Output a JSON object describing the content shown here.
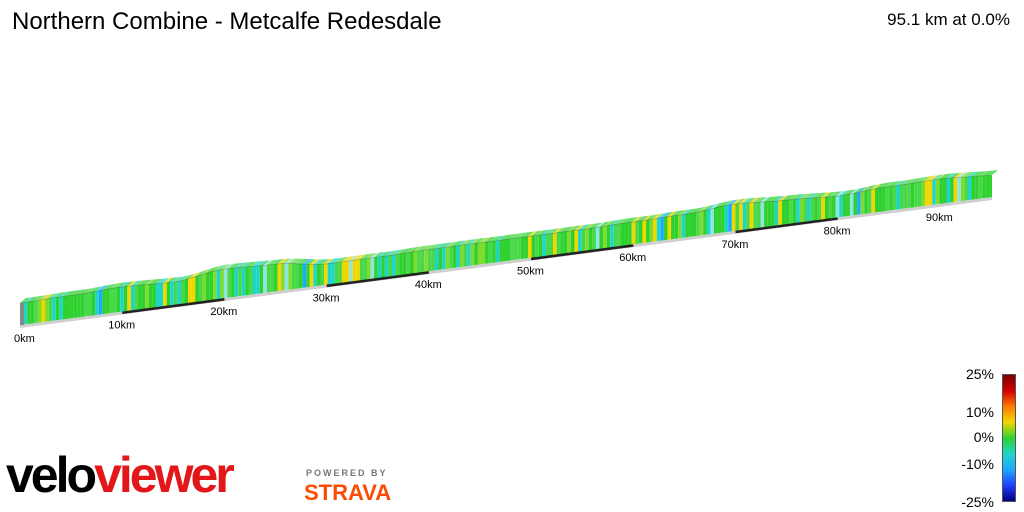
{
  "header": {
    "title": "Northern Combine - Metcalfe Redesdale",
    "summary": "95.1 km at 0.0%"
  },
  "chart_data": {
    "type": "area",
    "title": "Northern Combine - Metcalfe Redesdale",
    "distance_km": 95.1,
    "average_gradient_pct": 0.0,
    "x_ticks": [
      "0km",
      "10km",
      "20km",
      "30km",
      "40km",
      "50km",
      "60km",
      "70km",
      "80km",
      "90km"
    ],
    "x_tick_values": [
      0,
      10,
      20,
      30,
      40,
      50,
      60,
      70,
      80,
      90
    ],
    "gradient_scale": {
      "labels": [
        "25%",
        "10%",
        "0%",
        "-10%",
        "-25%"
      ],
      "values": [
        25,
        10,
        0,
        -10,
        -25
      ],
      "colors": [
        "#7a0000",
        "#d10000",
        "#ff7a00",
        "#f2d600",
        "#2fd12f",
        "#1ed6c8",
        "#1fa8ff",
        "#1f40ff",
        "#000080"
      ]
    },
    "profile_relative_height": [
      {
        "km": 0,
        "h": 0.0
      },
      {
        "km": 5,
        "h": 0.02
      },
      {
        "km": 10,
        "h": 0.05
      },
      {
        "km": 15,
        "h": 0.04
      },
      {
        "km": 20,
        "h": 0.12
      },
      {
        "km": 25,
        "h": 0.11
      },
      {
        "km": 30,
        "h": 0.05
      },
      {
        "km": 35,
        "h": 0.06
      },
      {
        "km": 40,
        "h": 0.08
      },
      {
        "km": 45,
        "h": 0.09
      },
      {
        "km": 50,
        "h": 0.1
      },
      {
        "km": 55,
        "h": 0.11
      },
      {
        "km": 60,
        "h": 0.13
      },
      {
        "km": 65,
        "h": 0.15
      },
      {
        "km": 70,
        "h": 0.2
      },
      {
        "km": 75,
        "h": 0.18
      },
      {
        "km": 80,
        "h": 0.16
      },
      {
        "km": 85,
        "h": 0.2
      },
      {
        "km": 90,
        "h": 0.22
      },
      {
        "km": 95.1,
        "h": 0.2
      }
    ]
  },
  "branding": {
    "logo_part1": "velo",
    "logo_part2": "viewer",
    "powered_by": "POWERED BY",
    "strava": "STRAVA"
  }
}
